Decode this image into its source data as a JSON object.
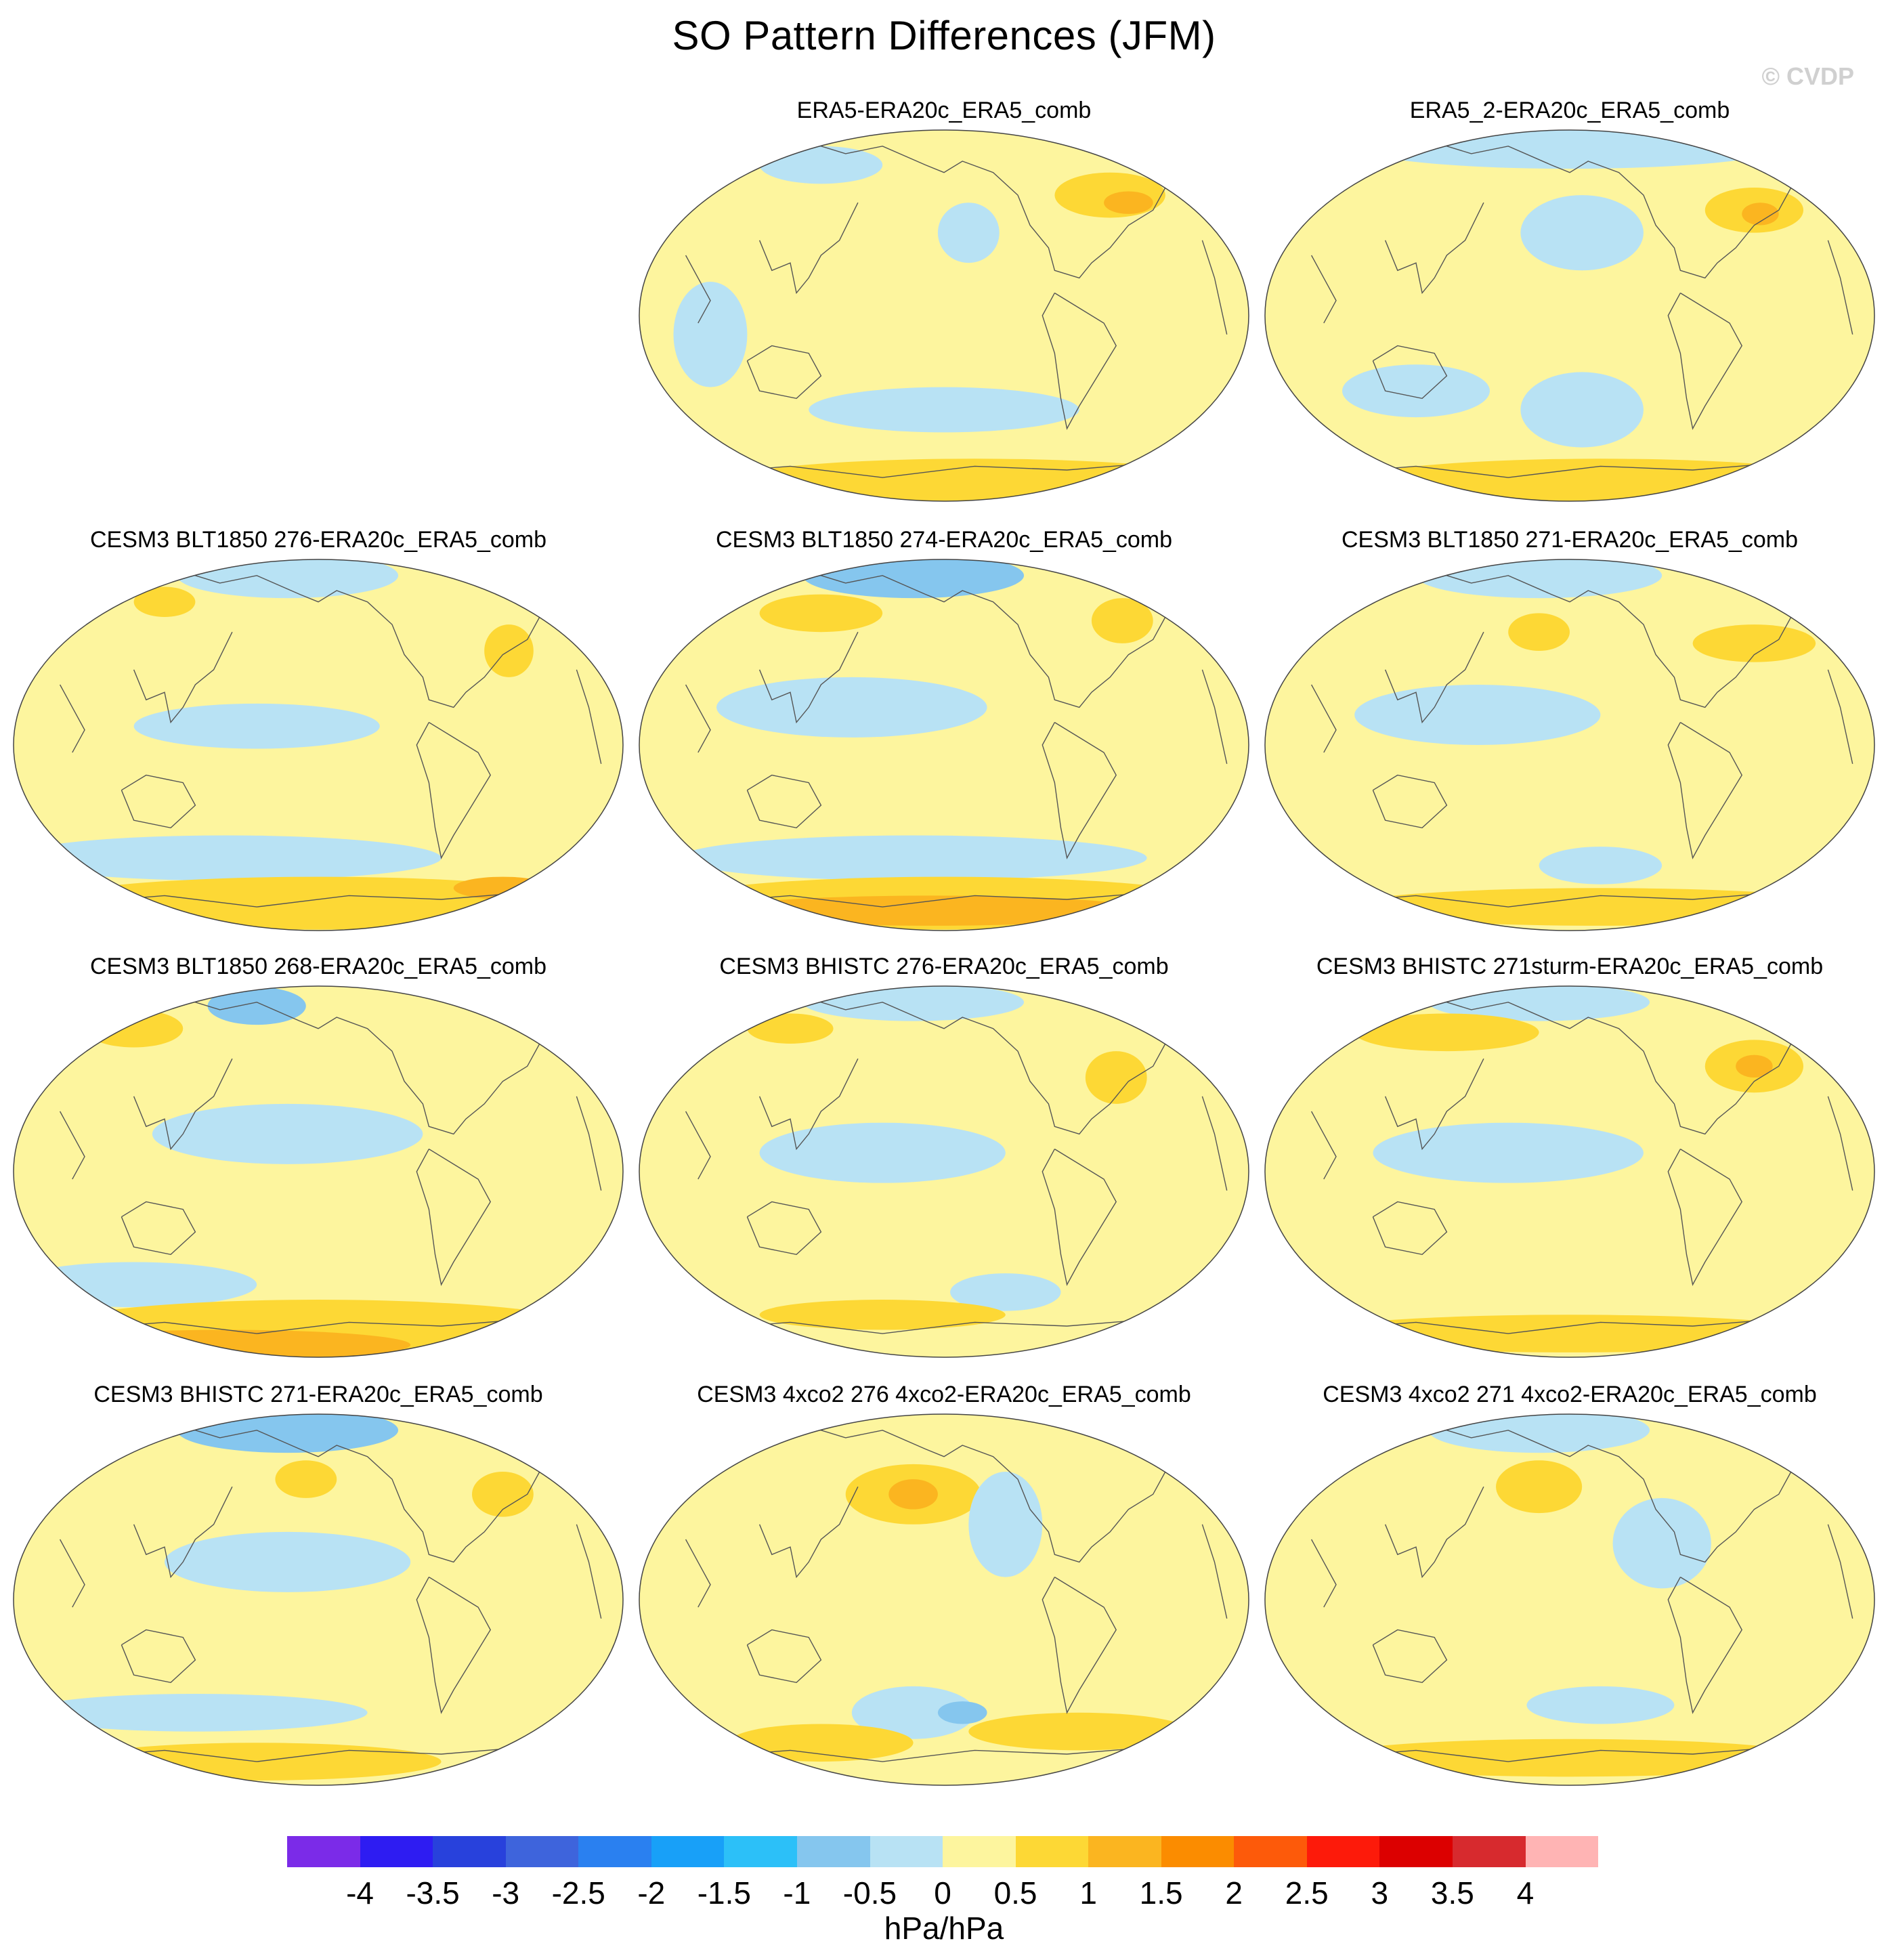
{
  "title": "SO Pattern Differences (JFM)",
  "copyright": "© CVDP",
  "panels": [
    {
      "title": "ERA5-ERA20c_ERA5_comb",
      "features": [
        {
          "t": "neg",
          "c": [
            0.3,
            0.1
          ],
          "r": [
            0.1,
            0.05
          ]
        },
        {
          "t": "neg",
          "c": [
            0.54,
            0.28
          ],
          "r": [
            0.05,
            0.08
          ]
        },
        {
          "t": "pos",
          "c": [
            0.77,
            0.18
          ],
          "r": [
            0.09,
            0.06
          ]
        },
        {
          "t": "pos2",
          "c": [
            0.8,
            0.2
          ],
          "r": [
            0.04,
            0.03
          ]
        },
        {
          "t": "neg",
          "c": [
            0.12,
            0.55
          ],
          "r": [
            0.06,
            0.14
          ]
        },
        {
          "t": "neg",
          "c": [
            0.5,
            0.75
          ],
          "r": [
            0.22,
            0.06
          ]
        },
        {
          "t": "pos",
          "c": [
            0.55,
            0.94
          ],
          "r": [
            0.4,
            0.06
          ]
        }
      ]
    },
    {
      "title": "ERA5_2-ERA20c_ERA5_comb",
      "features": [
        {
          "t": "neg",
          "c": [
            0.5,
            0.05
          ],
          "r": [
            0.35,
            0.06
          ]
        },
        {
          "t": "neg",
          "c": [
            0.52,
            0.28
          ],
          "r": [
            0.1,
            0.1
          ]
        },
        {
          "t": "pos",
          "c": [
            0.8,
            0.22
          ],
          "r": [
            0.08,
            0.06
          ]
        },
        {
          "t": "pos2",
          "c": [
            0.81,
            0.23
          ],
          "r": [
            0.03,
            0.03
          ]
        },
        {
          "t": "neg",
          "c": [
            0.25,
            0.7
          ],
          "r": [
            0.12,
            0.07
          ]
        },
        {
          "t": "neg",
          "c": [
            0.52,
            0.75
          ],
          "r": [
            0.1,
            0.1
          ]
        },
        {
          "t": "pos",
          "c": [
            0.55,
            0.94
          ],
          "r": [
            0.4,
            0.06
          ]
        }
      ]
    },
    {
      "title": "CESM3 BLT1850 276-ERA20c_ERA5_comb",
      "features": [
        {
          "t": "neg",
          "c": [
            0.45,
            0.05
          ],
          "r": [
            0.18,
            0.06
          ]
        },
        {
          "t": "pos",
          "c": [
            0.25,
            0.12
          ],
          "r": [
            0.05,
            0.04
          ]
        },
        {
          "t": "pos",
          "c": [
            0.81,
            0.25
          ],
          "r": [
            0.04,
            0.07
          ]
        },
        {
          "t": "neg",
          "c": [
            0.4,
            0.45
          ],
          "r": [
            0.2,
            0.06
          ]
        },
        {
          "t": "neg",
          "c": [
            0.35,
            0.8
          ],
          "r": [
            0.35,
            0.06
          ]
        },
        {
          "t": "pos",
          "c": [
            0.5,
            0.92
          ],
          "r": [
            0.45,
            0.07
          ]
        },
        {
          "t": "pos2",
          "c": [
            0.8,
            0.88
          ],
          "r": [
            0.08,
            0.03
          ]
        }
      ]
    },
    {
      "title": "CESM3 BLT1850 274-ERA20c_ERA5_comb",
      "features": [
        {
          "t": "neg2",
          "c": [
            0.45,
            0.05
          ],
          "r": [
            0.18,
            0.06
          ]
        },
        {
          "t": "pos",
          "c": [
            0.3,
            0.15
          ],
          "r": [
            0.1,
            0.05
          ]
        },
        {
          "t": "pos",
          "c": [
            0.79,
            0.17
          ],
          "r": [
            0.05,
            0.06
          ]
        },
        {
          "t": "neg",
          "c": [
            0.35,
            0.4
          ],
          "r": [
            0.22,
            0.08
          ]
        },
        {
          "t": "neg",
          "c": [
            0.45,
            0.8
          ],
          "r": [
            0.38,
            0.06
          ]
        },
        {
          "t": "pos",
          "c": [
            0.5,
            0.92
          ],
          "r": [
            0.45,
            0.07
          ]
        },
        {
          "t": "pos2",
          "c": [
            0.48,
            0.94
          ],
          "r": [
            0.35,
            0.04
          ]
        }
      ]
    },
    {
      "title": "CESM3 BLT1850 271-ERA20c_ERA5_comb",
      "features": [
        {
          "t": "neg",
          "c": [
            0.45,
            0.05
          ],
          "r": [
            0.2,
            0.06
          ]
        },
        {
          "t": "pos",
          "c": [
            0.45,
            0.2
          ],
          "r": [
            0.05,
            0.05
          ]
        },
        {
          "t": "pos",
          "c": [
            0.8,
            0.23
          ],
          "r": [
            0.1,
            0.05
          ]
        },
        {
          "t": "neg",
          "c": [
            0.35,
            0.42
          ],
          "r": [
            0.2,
            0.08
          ]
        },
        {
          "t": "neg",
          "c": [
            0.55,
            0.82
          ],
          "r": [
            0.1,
            0.05
          ]
        },
        {
          "t": "pos",
          "c": [
            0.55,
            0.93
          ],
          "r": [
            0.42,
            0.05
          ]
        }
      ]
    },
    {
      "title": "CESM3 BLT1850 268-ERA20c_ERA5_comb",
      "features": [
        {
          "t": "neg2",
          "c": [
            0.4,
            0.06
          ],
          "r": [
            0.08,
            0.05
          ]
        },
        {
          "t": "pos",
          "c": [
            0.2,
            0.12
          ],
          "r": [
            0.08,
            0.05
          ]
        },
        {
          "t": "neg",
          "c": [
            0.45,
            0.4
          ],
          "r": [
            0.22,
            0.08
          ]
        },
        {
          "t": "neg",
          "c": [
            0.2,
            0.8
          ],
          "r": [
            0.2,
            0.06
          ]
        },
        {
          "t": "pos",
          "c": [
            0.5,
            0.92
          ],
          "r": [
            0.45,
            0.08
          ]
        },
        {
          "t": "pos2",
          "c": [
            0.35,
            0.96
          ],
          "r": [
            0.3,
            0.04
          ]
        }
      ]
    },
    {
      "title": "CESM3 BHISTC 276-ERA20c_ERA5_comb",
      "features": [
        {
          "t": "neg",
          "c": [
            0.45,
            0.05
          ],
          "r": [
            0.18,
            0.05
          ]
        },
        {
          "t": "pos",
          "c": [
            0.25,
            0.12
          ],
          "r": [
            0.07,
            0.04
          ]
        },
        {
          "t": "pos",
          "c": [
            0.78,
            0.25
          ],
          "r": [
            0.05,
            0.07
          ]
        },
        {
          "t": "neg",
          "c": [
            0.4,
            0.45
          ],
          "r": [
            0.2,
            0.08
          ]
        },
        {
          "t": "neg",
          "c": [
            0.6,
            0.82
          ],
          "r": [
            0.09,
            0.05
          ]
        },
        {
          "t": "pos",
          "c": [
            0.4,
            0.88
          ],
          "r": [
            0.2,
            0.04
          ]
        }
      ]
    },
    {
      "title": "CESM3 BHISTC 271sturm-ERA20c_ERA5_comb",
      "features": [
        {
          "t": "neg",
          "c": [
            0.45,
            0.05
          ],
          "r": [
            0.18,
            0.05
          ]
        },
        {
          "t": "pos",
          "c": [
            0.3,
            0.13
          ],
          "r": [
            0.15,
            0.05
          ]
        },
        {
          "t": "pos",
          "c": [
            0.8,
            0.22
          ],
          "r": [
            0.08,
            0.07
          ]
        },
        {
          "t": "pos2",
          "c": [
            0.8,
            0.22
          ],
          "r": [
            0.03,
            0.03
          ]
        },
        {
          "t": "neg",
          "c": [
            0.4,
            0.45
          ],
          "r": [
            0.22,
            0.08
          ]
        },
        {
          "t": "pos",
          "c": [
            0.5,
            0.93
          ],
          "r": [
            0.42,
            0.05
          ]
        }
      ]
    },
    {
      "title": "CESM3 BHISTC 271-ERA20c_ERA5_comb",
      "features": [
        {
          "t": "neg2",
          "c": [
            0.45,
            0.05
          ],
          "r": [
            0.18,
            0.06
          ]
        },
        {
          "t": "pos",
          "c": [
            0.48,
            0.18
          ],
          "r": [
            0.05,
            0.05
          ]
        },
        {
          "t": "pos",
          "c": [
            0.8,
            0.22
          ],
          "r": [
            0.05,
            0.06
          ]
        },
        {
          "t": "neg",
          "c": [
            0.45,
            0.4
          ],
          "r": [
            0.2,
            0.08
          ]
        },
        {
          "t": "neg",
          "c": [
            0.3,
            0.8
          ],
          "r": [
            0.28,
            0.05
          ]
        },
        {
          "t": "pos",
          "c": [
            0.4,
            0.93
          ],
          "r": [
            0.3,
            0.05
          ]
        }
      ]
    },
    {
      "title": "CESM3 4xco2 276 4xco2-ERA20c_ERA5_comb",
      "features": [
        {
          "t": "pos",
          "c": [
            0.45,
            0.22
          ],
          "r": [
            0.11,
            0.08
          ]
        },
        {
          "t": "pos2",
          "c": [
            0.45,
            0.22
          ],
          "r": [
            0.04,
            0.04
          ]
        },
        {
          "t": "neg",
          "c": [
            0.6,
            0.3
          ],
          "r": [
            0.06,
            0.14
          ]
        },
        {
          "t": "neg",
          "c": [
            0.45,
            0.8
          ],
          "r": [
            0.1,
            0.07
          ]
        },
        {
          "t": "neg2",
          "c": [
            0.53,
            0.8
          ],
          "r": [
            0.04,
            0.03
          ]
        },
        {
          "t": "pos",
          "c": [
            0.3,
            0.88
          ],
          "r": [
            0.15,
            0.05
          ]
        },
        {
          "t": "pos",
          "c": [
            0.72,
            0.85
          ],
          "r": [
            0.18,
            0.05
          ]
        }
      ]
    },
    {
      "title": "CESM3 4xco2 271 4xco2-ERA20c_ERA5_comb",
      "features": [
        {
          "t": "neg",
          "c": [
            0.45,
            0.05
          ],
          "r": [
            0.18,
            0.06
          ]
        },
        {
          "t": "pos",
          "c": [
            0.45,
            0.2
          ],
          "r": [
            0.07,
            0.07
          ]
        },
        {
          "t": "neg",
          "c": [
            0.65,
            0.35
          ],
          "r": [
            0.08,
            0.12
          ]
        },
        {
          "t": "neg",
          "c": [
            0.55,
            0.78
          ],
          "r": [
            0.12,
            0.05
          ]
        },
        {
          "t": "pos",
          "c": [
            0.5,
            0.92
          ],
          "r": [
            0.4,
            0.05
          ]
        }
      ]
    }
  ],
  "colorbar": {
    "colors": [
      "#7b2be8",
      "#2e1cf2",
      "#2841dc",
      "#3e64dc",
      "#2a80f0",
      "#18a0f8",
      "#2cc0f8",
      "#85c6ee",
      "#b8e2f4",
      "#fdf59e",
      "#fdd835",
      "#fbb520",
      "#fb8c00",
      "#fd5a0a",
      "#fd1a0a",
      "#dc0000",
      "#d72a2e",
      "#ffb4b4"
    ],
    "labels": [
      "-4",
      "-3.5",
      "-3",
      "-2.5",
      "-2",
      "-1.5",
      "-1",
      "-0.5",
      "0",
      "0.5",
      "1",
      "1.5",
      "2",
      "2.5",
      "3",
      "3.5",
      "4"
    ],
    "units": "hPa/hPa"
  },
  "palette": {
    "background": "#fdf59e",
    "neg": "#b8e2f4",
    "neg2": "#85c6ee",
    "neg3": "#2cc0f8",
    "pos": "#fdd835",
    "pos2": "#fbb520"
  }
}
